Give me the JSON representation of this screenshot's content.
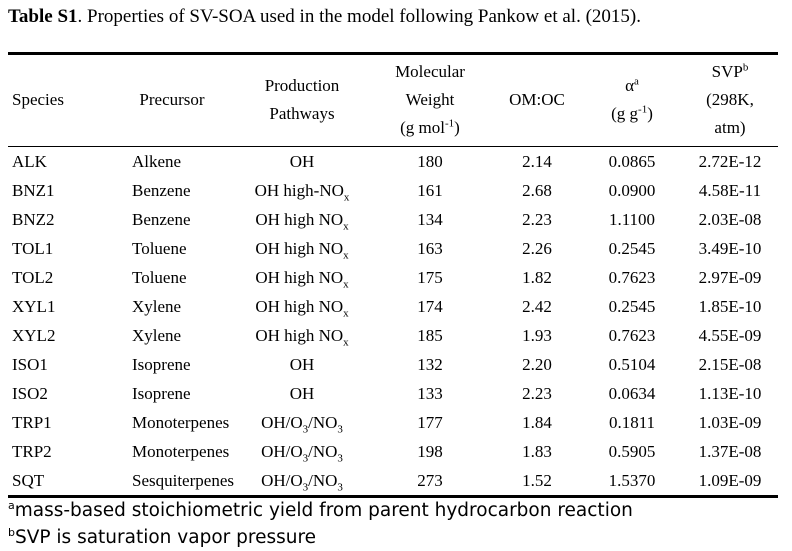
{
  "caption": {
    "label": "Table S1",
    "text": ". Properties of SV-SOA used in the model following Pankow et al. (2015)."
  },
  "headers": {
    "species": "Species",
    "precursor": "Precursor",
    "pathways_l1": "Production",
    "pathways_l2": "Pathways",
    "mw_l1": "Molecular",
    "mw_l2": "Weight",
    "mw_l3a": "(g mol",
    "mw_l3sup": "-1",
    "mw_l3b": ")",
    "omoc": "OM:OC",
    "alpha": "α",
    "alpha_sup": "a",
    "alpha_unit_a": "(g g",
    "alpha_unit_sup": "-1",
    "alpha_unit_b": ")",
    "svp": "SVP",
    "svp_sup": "b",
    "svp_l2": "(298K,",
    "svp_l3": "atm)"
  },
  "rows": [
    {
      "species": "ALK",
      "precursor": "Alkene",
      "path_main": "OH",
      "path_sub": "",
      "path_tail": "",
      "mw": "180",
      "omoc": "2.14",
      "alpha": "0.0865",
      "svp": "2.72E-12"
    },
    {
      "species": "BNZ1",
      "precursor": "Benzene",
      "path_main": "OH high-NO",
      "path_sub": "x",
      "path_tail": "",
      "mw": "161",
      "omoc": "2.68",
      "alpha": "0.0900",
      "svp": "4.58E-11"
    },
    {
      "species": "BNZ2",
      "precursor": "Benzene",
      "path_main": "OH high NO",
      "path_sub": "x",
      "path_tail": "",
      "mw": "134",
      "omoc": "2.23",
      "alpha": "1.1100",
      "svp": "2.03E-08"
    },
    {
      "species": "TOL1",
      "precursor": "Toluene",
      "path_main": "OH high NO",
      "path_sub": "x",
      "path_tail": "",
      "mw": "163",
      "omoc": "2.26",
      "alpha": "0.2545",
      "svp": "3.49E-10"
    },
    {
      "species": "TOL2",
      "precursor": "Toluene",
      "path_main": "OH high NO",
      "path_sub": "x",
      "path_tail": "",
      "mw": "175",
      "omoc": "1.82",
      "alpha": "0.7623",
      "svp": "2.97E-09"
    },
    {
      "species": "XYL1",
      "precursor": "Xylene",
      "path_main": "OH high NO",
      "path_sub": "x",
      "path_tail": "",
      "mw": "174",
      "omoc": "2.42",
      "alpha": "0.2545",
      "svp": "1.85E-10"
    },
    {
      "species": "XYL2",
      "precursor": "Xylene",
      "path_main": "OH high NO",
      "path_sub": "x",
      "path_tail": "",
      "mw": "185",
      "omoc": "1.93",
      "alpha": "0.7623",
      "svp": "4.55E-09"
    },
    {
      "species": "ISO1",
      "precursor": "Isoprene",
      "path_main": "OH",
      "path_sub": "",
      "path_tail": "",
      "mw": "132",
      "omoc": "2.20",
      "alpha": "0.5104",
      "svp": "2.15E-08"
    },
    {
      "species": "ISO2",
      "precursor": "Isoprene",
      "path_main": "OH",
      "path_sub": "",
      "path_tail": "",
      "mw": "133",
      "omoc": "2.23",
      "alpha": "0.0634",
      "svp": "1.13E-10"
    },
    {
      "species": "TRP1",
      "precursor": "Monoterpenes",
      "path_main": "OH/O",
      "path_sub": "3",
      "path_tail": "/NO",
      "path_sub2": "3",
      "mw": "177",
      "omoc": "1.84",
      "alpha": "0.1811",
      "svp": "1.03E-09"
    },
    {
      "species": "TRP2",
      "precursor": "Monoterpenes",
      "path_main": "OH/O",
      "path_sub": "3",
      "path_tail": "/NO",
      "path_sub2": "3",
      "mw": "198",
      "omoc": "1.83",
      "alpha": "0.5905",
      "svp": "1.37E-08"
    },
    {
      "species": "SQT",
      "precursor": "Sesquiterpenes",
      "path_main": "OH/O",
      "path_sub": "3",
      "path_tail": "/NO",
      "path_sub2": "3",
      "mw": "273",
      "omoc": "1.52",
      "alpha": "1.5370",
      "svp": "1.09E-09"
    }
  ],
  "footnotes": {
    "a_mark": "a",
    "a_text": "mass-based stoichiometric yield from parent hydrocarbon reaction",
    "b_mark": "b",
    "b_text": "SVP is saturation vapor pressure"
  }
}
